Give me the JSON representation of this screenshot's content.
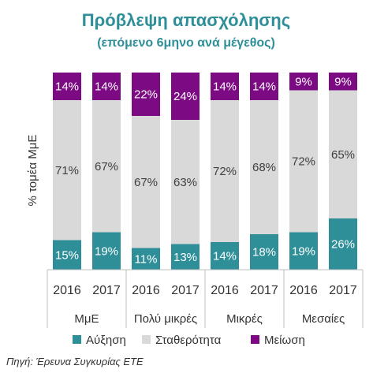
{
  "chart_data": {
    "type": "bar",
    "stacked": true,
    "percent": true,
    "title": "Πρόβλεψη απασχόλησης",
    "subtitle": "(επόμενο 6μηνο ανά μέγεθος)",
    "ylabel": "% τομέα ΜμΕ",
    "xlabel": "",
    "ylim": [
      0,
      100
    ],
    "categories": [
      "2016",
      "2017",
      "2016",
      "2017",
      "2016",
      "2017",
      "2016",
      "2017"
    ],
    "groups": [
      {
        "name": "ΜμΕ",
        "categories": [
          "2016",
          "2017"
        ]
      },
      {
        "name": "Πολύ μικρές",
        "categories": [
          "2016",
          "2017"
        ]
      },
      {
        "name": "Μικρές",
        "categories": [
          "2016",
          "2017"
        ]
      },
      {
        "name": "Μεσαίες",
        "categories": [
          "2016",
          "2017"
        ]
      }
    ],
    "series": [
      {
        "name": "Αύξηση",
        "color": "#2e8f98",
        "values": [
          15,
          19,
          11,
          13,
          14,
          18,
          19,
          26
        ],
        "labels": [
          "15%",
          "19%",
          "11%",
          "13%",
          "14%",
          "18%",
          "19%",
          "26%"
        ]
      },
      {
        "name": "Σταθερότητα",
        "color": "#d9d9d9",
        "values": [
          71,
          67,
          67,
          63,
          72,
          68,
          72,
          65
        ],
        "labels": [
          "71%",
          "67%",
          "67%",
          "63%",
          "72%",
          "68%",
          "72%",
          "65%"
        ]
      },
      {
        "name": "Μείωση",
        "color": "#7b0a83",
        "values": [
          14,
          14,
          22,
          24,
          14,
          14,
          9,
          9
        ],
        "labels": [
          "14%",
          "14%",
          "22%",
          "24%",
          "14%",
          "14%",
          "9%",
          "9%"
        ]
      }
    ],
    "legend": "bottom",
    "grid": false
  },
  "source_note": "Πηγή: Έρευνα Συγκυρίας ΕΤΕ",
  "colors": {
    "title": "#2e8f98",
    "increase": "#2e8f98",
    "stable": "#d9d9d9",
    "decrease": "#7b0a83",
    "label_on_dark": "#ffffff",
    "label_on_light": "#404040",
    "axis": "#bfbfbf"
  }
}
